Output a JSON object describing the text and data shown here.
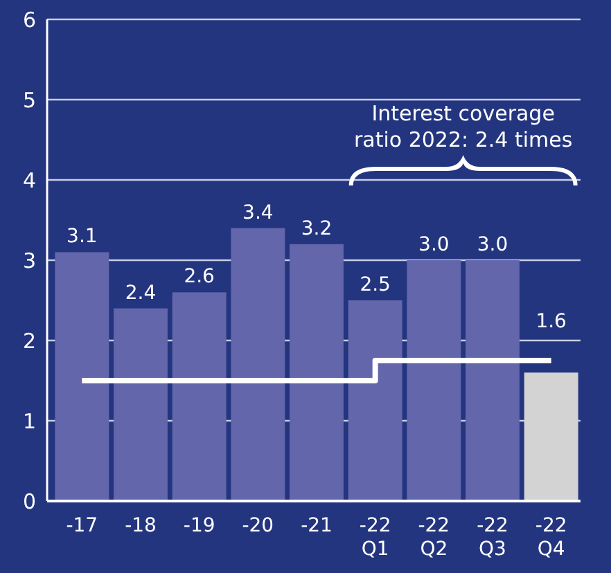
{
  "chart_data": {
    "type": "bar",
    "categories": [
      "-17",
      "-18",
      "-19",
      "-20",
      "-21",
      "-22\nQ1",
      "-22\nQ2",
      "-22\nQ3",
      "-22\nQ4"
    ],
    "series": [
      {
        "values": [
          3.1,
          2.4,
          2.6,
          3.4,
          3.2,
          2.5,
          3.0,
          3.0,
          1.6
        ],
        "value_labels": [
          "3.1",
          "2.4",
          "2.6",
          "3.4",
          "3.2",
          "2.5",
          "3.0",
          "3.0",
          "1.6"
        ],
        "colors": [
          "#6366aa",
          "#6366aa",
          "#6366aa",
          "#6366aa",
          "#6366aa",
          "#6366aa",
          "#6366aa",
          "#6366aa",
          "#d3d3d3"
        ]
      },
      {
        "type": "step",
        "color": "#ffffff",
        "values": [
          1.5,
          1.5,
          1.5,
          1.5,
          1.5,
          1.75,
          1.75,
          1.75,
          1.75
        ]
      }
    ],
    "ylim": [
      0,
      6
    ],
    "yticks": [
      0,
      1,
      2,
      3,
      4,
      5,
      6
    ],
    "grid": "y",
    "annotations": [
      "Interest coverage ratio 2022: 2.4 times"
    ]
  }
}
